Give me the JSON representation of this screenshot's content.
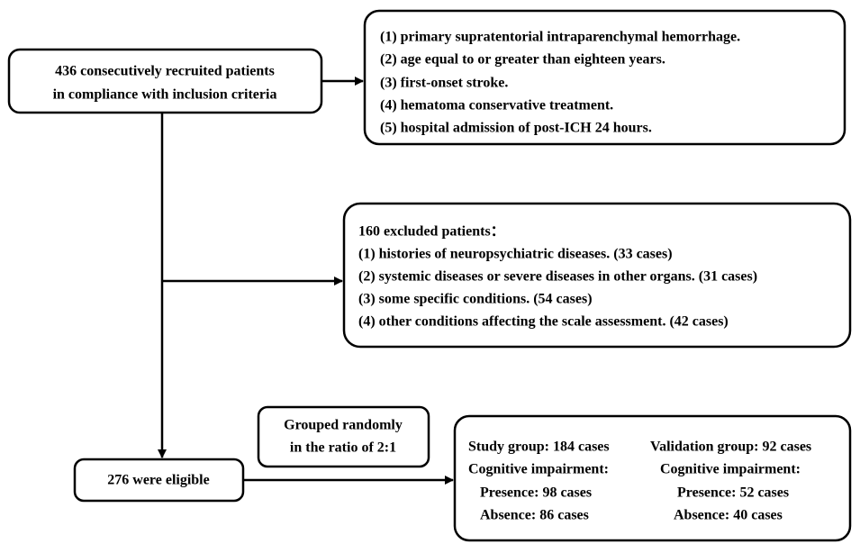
{
  "source_box": {
    "lines": [
      "436 consecutively recruited patients",
      "in compliance with inclusion criteria"
    ]
  },
  "inclusion_box": {
    "lines": [
      "(1) primary supratentorial intraparenchymal hemorrhage.",
      "(2) age equal to or greater than eighteen years.",
      "(3) first-onset stroke.",
      "(4) hematoma conservative treatment.",
      "(5) hospital admission of post-ICH 24 hours."
    ]
  },
  "exclusion_box": {
    "title": "160 excluded patients：",
    "lines": [
      "(1) histories of neuropsychiatric diseases. (33 cases)",
      "(2) systemic diseases or severe diseases in other organs. (31 cases)",
      "(3) some specific conditions. (54 cases)",
      "(4) other conditions affecting the scale assessment. (42 cases)"
    ]
  },
  "grouping_box": {
    "lines": [
      "Grouped randomly",
      "in the ratio of 2:1"
    ]
  },
  "eligible_box": {
    "label": "276 were eligible"
  },
  "groups_box": {
    "study": {
      "title": "Study group: 184 cases",
      "subtitle": "Cognitive impairment:",
      "presence": "Presence: 98 cases",
      "absence": "Absence: 86 cases"
    },
    "validation": {
      "title": "Validation group: 92 cases",
      "subtitle": "Cognitive impairment:",
      "presence": "Presence: 52 cases",
      "absence": "Absence: 40 cases"
    }
  }
}
